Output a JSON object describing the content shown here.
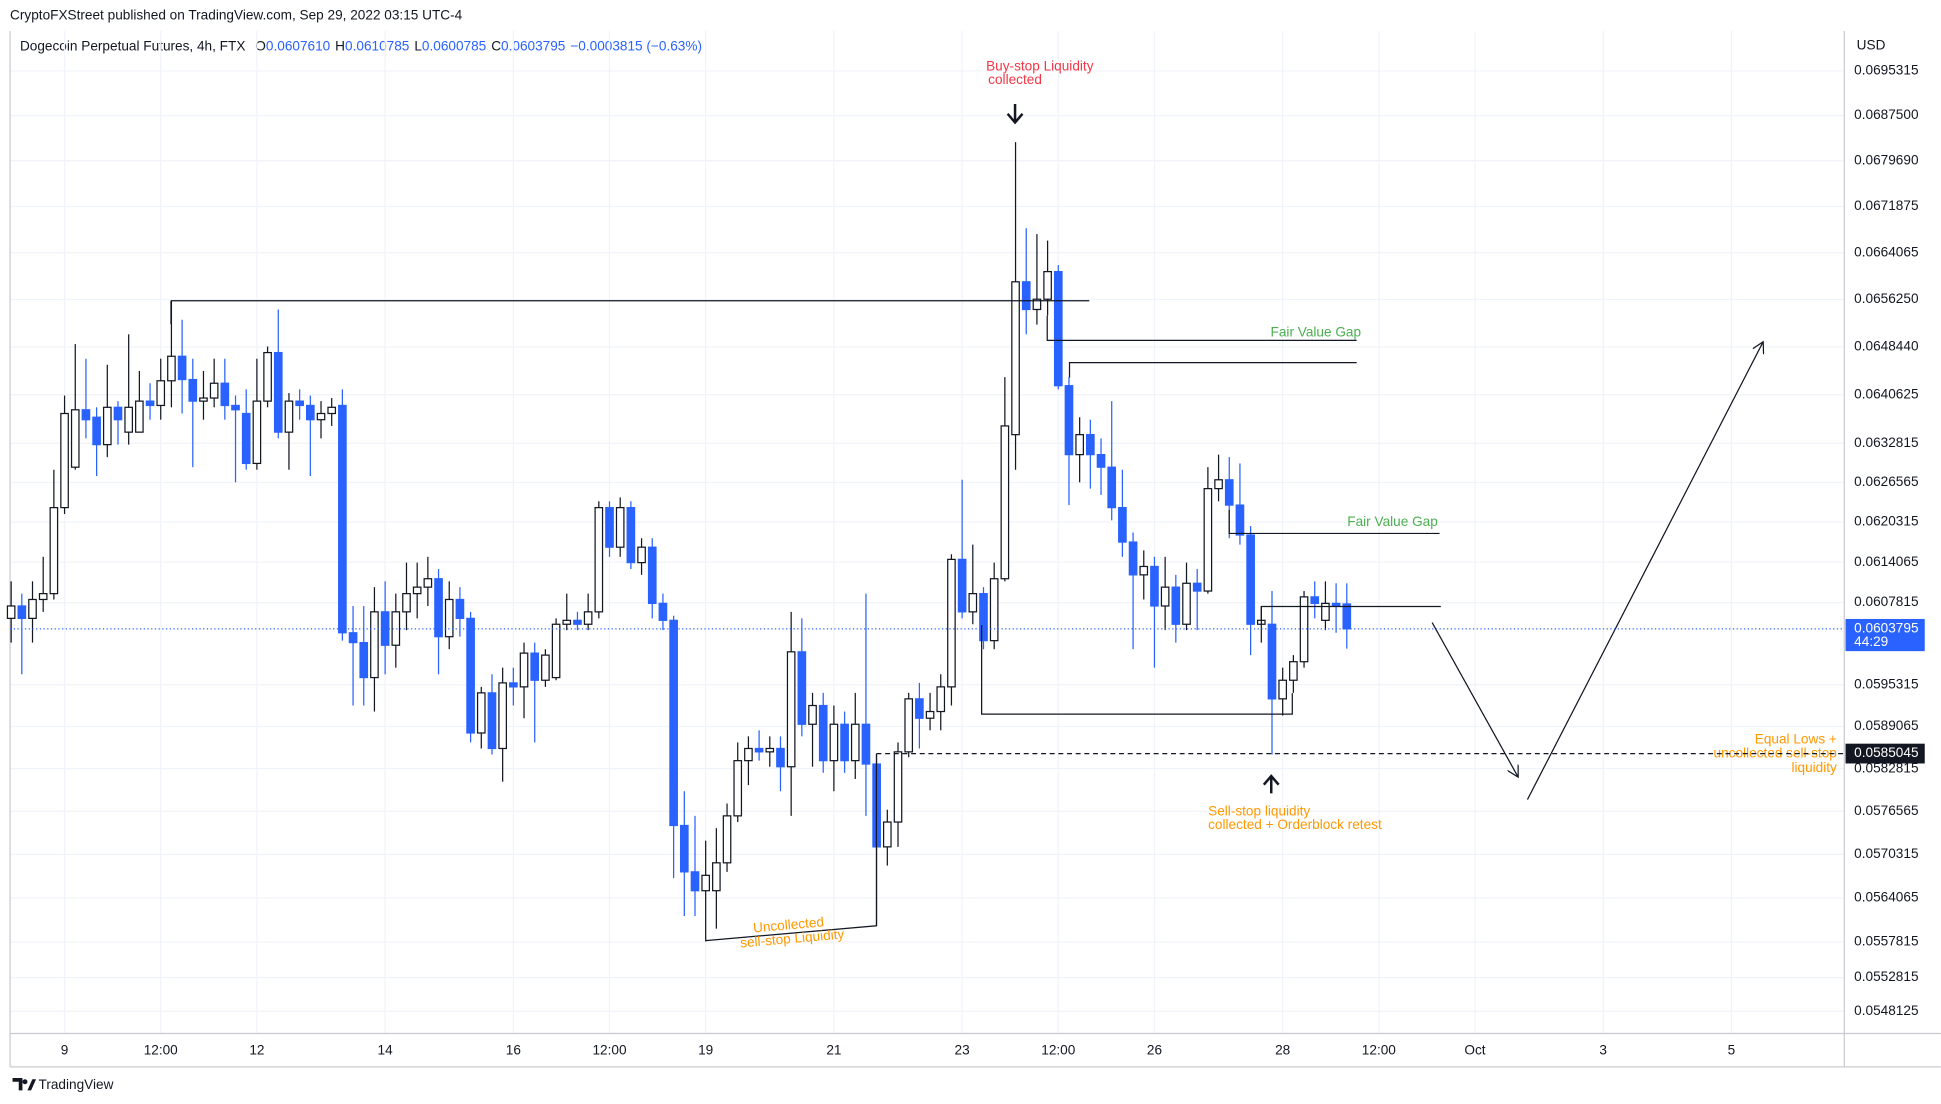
{
  "header": {
    "publisher": "CryptoFXStreet published on TradingView.com, Sep 29, 2022 03:15 UTC-4",
    "symbol": "Dogecoin Perpetual Futures, 4h, FTX",
    "ohlc": [
      {
        "label": "O",
        "value": "0.0607610"
      },
      {
        "label": "H",
        "value": "0.0610785"
      },
      {
        "label": "L",
        "value": "0.0600785"
      },
      {
        "label": "C",
        "value": "0.0603795"
      }
    ],
    "change": "−0.0003815 (−0.63%)",
    "currency": "USD",
    "countdown": "44:29"
  },
  "footer": {
    "brand": "TradingView"
  },
  "annotations": {
    "buy_stop": [
      "Buy-stop Liquidity",
      "collected"
    ],
    "fvg_1": "Fair Value Gap",
    "fvg_2": "Fair Value Gap",
    "uncollected": [
      "Uncollected",
      "sell-stop Liquidity"
    ],
    "sell_stop": [
      "Sell-stop liquidity",
      "collected + Orderblock retest"
    ],
    "equal_lows": [
      "Equal Lows +",
      "uncollected sell-stop",
      "liquidity"
    ]
  },
  "chart_data": {
    "type": "candlestick",
    "log_scale": true,
    "grid": true,
    "colors": {
      "up": "#ffffff",
      "up_border": "#131722",
      "down": "#2962ff"
    },
    "xlim": [
      8.15,
      36.76
    ],
    "xticks": [
      9,
      {
        "value": 10.5,
        "label": "12:00"
      },
      12,
      14,
      16,
      {
        "value": 17.5,
        "label": "12:00"
      },
      19,
      21,
      23,
      {
        "value": 24.5,
        "label": "12:00"
      },
      26,
      28,
      {
        "value": 29.5,
        "label": "12:00"
      },
      {
        "value": 31,
        "label": "Oct"
      },
      {
        "value": 33,
        "label": "3"
      },
      {
        "value": 35,
        "label": "5"
      }
    ],
    "ylim": [
      0.05454,
      0.0698
    ],
    "yticks": [
      0.0695315,
      {
        "value": 0.06875,
        "label": "0.0687500"
      },
      {
        "value": 0.067969,
        "label": "0.0679690"
      },
      0.0671875,
      0.0664065,
      {
        "value": 0.065625,
        "label": "0.0656250"
      },
      {
        "value": 0.064844,
        "label": "0.0648440"
      },
      0.0640625,
      0.0632815,
      0.0626565,
      0.0620315,
      0.0614065,
      0.0607815,
      0.0595315,
      0.0589065,
      0.0582815,
      0.0576565,
      0.0570315,
      0.0564065,
      0.0557815,
      0.0552815,
      0.0548125
    ],
    "equal_lows_price": 0.0585045,
    "candles": [
      [
        8.1667,
        0.06054,
        0.06111,
        0.06017,
        0.06073
      ],
      [
        8.3333,
        0.06073,
        0.06092,
        0.05969,
        0.06054
      ],
      [
        8.5,
        0.06054,
        0.06111,
        0.06017,
        0.06083
      ],
      [
        8.6667,
        0.06083,
        0.06149,
        0.06064,
        0.06092
      ],
      [
        8.8333,
        0.06092,
        0.06286,
        0.06083,
        0.06226
      ],
      [
        9,
        0.06226,
        0.06405,
        0.06216,
        0.06376
      ],
      [
        9.1667,
        0.0629,
        0.06489,
        0.06286,
        0.06382
      ],
      [
        9.3333,
        0.06382,
        0.06465,
        0.06336,
        0.06366
      ],
      [
        9.5,
        0.0637,
        0.06386,
        0.06276,
        0.06326
      ],
      [
        9.6667,
        0.06326,
        0.06455,
        0.06306,
        0.06386
      ],
      [
        9.8333,
        0.06386,
        0.06396,
        0.06326,
        0.06366
      ],
      [
        10,
        0.06346,
        0.06505,
        0.06326,
        0.06386
      ],
      [
        10.1667,
        0.06346,
        0.06445,
        0.06346,
        0.06396
      ],
      [
        10.3333,
        0.06396,
        0.06425,
        0.06366,
        0.06389
      ],
      [
        10.5,
        0.06389,
        0.06465,
        0.06366,
        0.06429
      ],
      [
        10.6667,
        0.06429,
        0.06561,
        0.06386,
        0.06469
      ],
      [
        10.8333,
        0.06469,
        0.06529,
        0.06376,
        0.06431
      ],
      [
        11,
        0.06431,
        0.06465,
        0.0629,
        0.06396
      ],
      [
        11.1667,
        0.06396,
        0.06445,
        0.06366,
        0.06401
      ],
      [
        11.3333,
        0.06401,
        0.06465,
        0.06386,
        0.06425
      ],
      [
        11.5,
        0.06425,
        0.06465,
        0.06366,
        0.06389
      ],
      [
        11.6667,
        0.06389,
        0.06405,
        0.06266,
        0.06382
      ],
      [
        11.8333,
        0.06376,
        0.06415,
        0.06286,
        0.06296
      ],
      [
        12,
        0.06296,
        0.06465,
        0.06286,
        0.06396
      ],
      [
        12.1667,
        0.06396,
        0.06485,
        0.06386,
        0.06475
      ],
      [
        12.3333,
        0.06475,
        0.06546,
        0.06336,
        0.06346
      ],
      [
        12.5,
        0.06346,
        0.06409,
        0.06286,
        0.06396
      ],
      [
        12.6667,
        0.06396,
        0.06415,
        0.06366,
        0.06389
      ],
      [
        12.8333,
        0.06389,
        0.06405,
        0.06276,
        0.06366
      ],
      [
        13,
        0.06366,
        0.06396,
        0.06336,
        0.06376
      ],
      [
        13.1667,
        0.06376,
        0.06401,
        0.06356,
        0.06386
      ],
      [
        13.3333,
        0.06389,
        0.06415,
        0.0602,
        0.06032
      ],
      [
        13.5,
        0.06032,
        0.06073,
        0.05922,
        0.06017
      ],
      [
        13.6667,
        0.06017,
        0.06073,
        0.05922,
        0.05964
      ],
      [
        13.8333,
        0.05964,
        0.06102,
        0.05913,
        0.06064
      ],
      [
        14,
        0.06064,
        0.06111,
        0.05969,
        0.06013
      ],
      [
        14.1667,
        0.06013,
        0.06092,
        0.05979,
        0.06064
      ],
      [
        14.3333,
        0.06064,
        0.0614,
        0.06036,
        0.06092
      ],
      [
        14.5,
        0.06092,
        0.0614,
        0.06054,
        0.06102
      ],
      [
        14.6667,
        0.06102,
        0.06149,
        0.06073,
        0.06115
      ],
      [
        14.8333,
        0.06115,
        0.0613,
        0.05969,
        0.06026
      ],
      [
        15,
        0.06026,
        0.06111,
        0.06007,
        0.06083
      ],
      [
        15.1667,
        0.06083,
        0.06102,
        0.06026,
        0.06054
      ],
      [
        15.3333,
        0.06054,
        0.06064,
        0.05867,
        0.05881
      ],
      [
        15.5,
        0.05881,
        0.0595,
        0.05858,
        0.05941
      ],
      [
        15.6667,
        0.05941,
        0.05969,
        0.05849,
        0.05858
      ],
      [
        15.8333,
        0.05858,
        0.05979,
        0.05809,
        0.05956
      ],
      [
        16,
        0.05956,
        0.05979,
        0.05922,
        0.0595
      ],
      [
        16.1667,
        0.0595,
        0.06017,
        0.05903,
        0.06001
      ],
      [
        16.3333,
        0.06001,
        0.06017,
        0.05867,
        0.0596
      ],
      [
        16.5,
        0.0596,
        0.06007,
        0.0595,
        0.05998
      ],
      [
        16.6667,
        0.05964,
        0.06054,
        0.0596,
        0.06045
      ],
      [
        16.8333,
        0.06045,
        0.06092,
        0.06036,
        0.06051
      ],
      [
        17,
        0.06051,
        0.06064,
        0.06036,
        0.06045
      ],
      [
        17.1667,
        0.06045,
        0.06092,
        0.06036,
        0.06064
      ],
      [
        17.3333,
        0.06064,
        0.06236,
        0.06054,
        0.06226
      ],
      [
        17.5,
        0.06226,
        0.06236,
        0.06149,
        0.06164
      ],
      [
        17.6667,
        0.06164,
        0.06242,
        0.06149,
        0.06226
      ],
      [
        17.8333,
        0.06226,
        0.06236,
        0.0613,
        0.0614
      ],
      [
        18,
        0.0614,
        0.06178,
        0.06121,
        0.06164
      ],
      [
        18.1667,
        0.06164,
        0.06178,
        0.06054,
        0.06077
      ],
      [
        18.3333,
        0.06077,
        0.06092,
        0.06036,
        0.06051
      ],
      [
        18.5,
        0.06051,
        0.06058,
        0.05669,
        0.05745
      ],
      [
        18.6667,
        0.05745,
        0.05795,
        0.05615,
        0.05678
      ],
      [
        18.8333,
        0.05678,
        0.05759,
        0.05615,
        0.05651
      ],
      [
        19,
        0.05651,
        0.05723,
        0.05579,
        0.05673
      ],
      [
        19.1667,
        0.05651,
        0.05741,
        0.05597,
        0.05691
      ],
      [
        19.3333,
        0.05691,
        0.05777,
        0.05678,
        0.05759
      ],
      [
        19.5,
        0.05759,
        0.05867,
        0.0575,
        0.0584
      ],
      [
        19.6667,
        0.0584,
        0.05876,
        0.05804,
        0.05858
      ],
      [
        19.8333,
        0.05858,
        0.05885,
        0.0584,
        0.05853
      ],
      [
        20,
        0.05853,
        0.05876,
        0.05831,
        0.05858
      ],
      [
        20.1667,
        0.05858,
        0.05876,
        0.05795,
        0.05831
      ],
      [
        20.3333,
        0.05831,
        0.06064,
        0.05759,
        0.06003
      ],
      [
        20.5,
        0.06003,
        0.06054,
        0.05876,
        0.05894
      ],
      [
        20.6667,
        0.05894,
        0.05941,
        0.05831,
        0.05922
      ],
      [
        20.8333,
        0.05922,
        0.05941,
        0.05822,
        0.0584
      ],
      [
        21,
        0.0584,
        0.05922,
        0.05795,
        0.05894
      ],
      [
        21.1667,
        0.05894,
        0.05913,
        0.05822,
        0.0584
      ],
      [
        21.3333,
        0.0584,
        0.05941,
        0.05813,
        0.05894
      ],
      [
        21.5,
        0.05894,
        0.06092,
        0.05759,
        0.05835
      ],
      [
        21.6667,
        0.05835,
        0.05849,
        0.05601,
        0.05714
      ],
      [
        21.8333,
        0.05714,
        0.05768,
        0.05687,
        0.0575
      ],
      [
        22,
        0.0575,
        0.05867,
        0.05714,
        0.05853
      ],
      [
        22.1667,
        0.05853,
        0.05941,
        0.05845,
        0.05932
      ],
      [
        22.3333,
        0.05932,
        0.05956,
        0.05858,
        0.05903
      ],
      [
        22.5,
        0.05903,
        0.05941,
        0.05885,
        0.05913
      ],
      [
        22.6667,
        0.05913,
        0.05969,
        0.05885,
        0.0595
      ],
      [
        22.8333,
        0.0595,
        0.06153,
        0.05922,
        0.06145
      ],
      [
        23,
        0.06145,
        0.0627,
        0.06054,
        0.06064
      ],
      [
        23.1667,
        0.06064,
        0.06168,
        0.06045,
        0.06092
      ],
      [
        23.3333,
        0.06092,
        0.06102,
        0.06007,
        0.0602
      ],
      [
        23.5,
        0.0602,
        0.0614,
        0.06007,
        0.06115
      ],
      [
        23.6667,
        0.06115,
        0.06435,
        0.06111,
        0.06356
      ],
      [
        23.8333,
        0.06342,
        0.06829,
        0.06286,
        0.06592
      ],
      [
        24,
        0.06592,
        0.06682,
        0.06505,
        0.06546
      ],
      [
        24.1667,
        0.06546,
        0.06672,
        0.06521,
        0.06563
      ],
      [
        24.3333,
        0.06563,
        0.06661,
        0.06536,
        0.06609
      ],
      [
        24.5,
        0.06609,
        0.0662,
        0.06415,
        0.06421
      ],
      [
        24.6667,
        0.06421,
        0.06435,
        0.0623,
        0.0631
      ],
      [
        24.8333,
        0.0631,
        0.0637,
        0.06266,
        0.06342
      ],
      [
        25,
        0.06342,
        0.06366,
        0.06256,
        0.0631
      ],
      [
        25.1667,
        0.0631,
        0.06336,
        0.06246,
        0.0629
      ],
      [
        25.3333,
        0.0629,
        0.06396,
        0.06206,
        0.06226
      ],
      [
        25.5,
        0.06226,
        0.06286,
        0.06149,
        0.06172
      ],
      [
        25.6667,
        0.06172,
        0.06187,
        0.06007,
        0.06121
      ],
      [
        25.8333,
        0.06121,
        0.06159,
        0.06083,
        0.06134
      ],
      [
        26,
        0.06134,
        0.06149,
        0.05979,
        0.06073
      ],
      [
        26.1667,
        0.06073,
        0.06149,
        0.06036,
        0.06102
      ],
      [
        26.3333,
        0.06102,
        0.06121,
        0.06017,
        0.06045
      ],
      [
        26.5,
        0.06045,
        0.0614,
        0.06036,
        0.06108
      ],
      [
        26.6667,
        0.06108,
        0.0613,
        0.06036,
        0.06096
      ],
      [
        26.8333,
        0.06096,
        0.0629,
        0.06092,
        0.06256
      ],
      [
        27,
        0.06256,
        0.0631,
        0.06236,
        0.0627
      ],
      [
        27.1667,
        0.0627,
        0.06306,
        0.06178,
        0.0623
      ],
      [
        27.3333,
        0.0623,
        0.06296,
        0.06168,
        0.06183
      ],
      [
        27.5,
        0.06183,
        0.06197,
        0.05998,
        0.06045
      ],
      [
        27.6667,
        0.06045,
        0.06073,
        0.06017,
        0.06051
      ],
      [
        27.8333,
        0.06045,
        0.06096,
        0.05849,
        0.05932
      ],
      [
        28,
        0.05932,
        0.05979,
        0.05907,
        0.0596
      ],
      [
        28.1667,
        0.0596,
        0.05998,
        0.05941,
        0.05988
      ],
      [
        28.3333,
        0.05988,
        0.06096,
        0.05979,
        0.06087
      ],
      [
        28.5,
        0.06087,
        0.06111,
        0.06054,
        0.06077
      ],
      [
        28.6667,
        0.06051,
        0.06111,
        0.06036,
        0.06077
      ],
      [
        28.8333,
        0.06077,
        0.06108,
        0.06032,
        0.06073
      ],
      [
        29,
        0.060761,
        0.0610785,
        0.0600785,
        0.0603795
      ]
    ]
  }
}
